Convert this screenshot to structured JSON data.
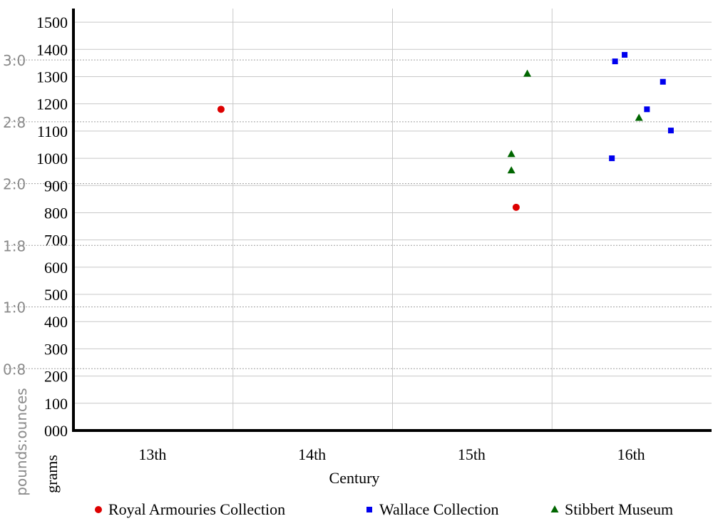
{
  "chart_data": {
    "type": "scatter",
    "xlabel": "Century",
    "ylabel": "grams",
    "ylabel_secondary": "pounds:ounces",
    "categories": [
      "13th",
      "14th",
      "15th",
      "16th"
    ],
    "ylim": [
      0,
      1550
    ],
    "y_ticks": [
      "000",
      "100",
      "200",
      "300",
      "400",
      "500",
      "600",
      "700",
      "800",
      "900",
      "1000",
      "1100",
      "1200",
      "1300",
      "1400",
      "1500"
    ],
    "secondary_ticks": [
      {
        "label": "0:8",
        "grams": 227
      },
      {
        "label": "1:0",
        "grams": 454
      },
      {
        "label": "1:8",
        "grams": 680
      },
      {
        "label": "2:0",
        "grams": 907
      },
      {
        "label": "2:8",
        "grams": 1134
      },
      {
        "label": "3:0",
        "grams": 1361
      }
    ],
    "series": [
      {
        "name": "Royal Armouries Collection",
        "marker": "circle",
        "color": "#dd0000",
        "points": [
          {
            "century": 13.5,
            "grams": 1180
          },
          {
            "century": 15.35,
            "grams": 820
          }
        ]
      },
      {
        "name": "Wallace Collection",
        "marker": "square",
        "color": "#0000ee",
        "points": [
          {
            "century": 15.97,
            "grams": 1356
          },
          {
            "century": 16.03,
            "grams": 1380
          },
          {
            "century": 16.17,
            "grams": 1180
          },
          {
            "century": 16.27,
            "grams": 1281
          },
          {
            "century": 16.32,
            "grams": 1102
          },
          {
            "century": 15.95,
            "grams": 1000
          }
        ]
      },
      {
        "name": "Stibbert Museum",
        "marker": "triangle",
        "color": "#006600",
        "points": [
          {
            "century": 15.42,
            "grams": 1310
          },
          {
            "century": 16.12,
            "grams": 1148
          },
          {
            "century": 15.32,
            "grams": 1015
          },
          {
            "century": 15.32,
            "grams": 955
          }
        ]
      }
    ],
    "legend_position": "bottom",
    "grid": true
  }
}
